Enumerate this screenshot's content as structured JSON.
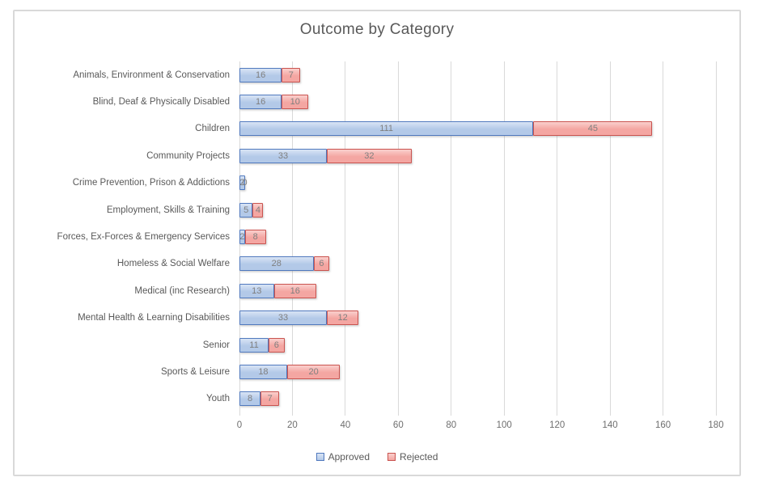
{
  "window": {
    "background": "#ffffff",
    "frame_border_color": "#d9d9d9"
  },
  "chart_data": {
    "type": "bar",
    "orientation": "horizontal",
    "stacked": true,
    "title": "Outcome by Category",
    "categories": [
      "Animals, Environment & Conservation",
      "Blind, Deaf & Physically Disabled",
      "Children",
      "Community Projects",
      "Crime Prevention, Prison & Addictions",
      "Employment, Skills & Training",
      "Forces, Ex-Forces & Emergency Services",
      "Homeless & Social Welfare",
      "Medical (inc Research)",
      "Mental Health & Learning Disabilities",
      "Senior",
      "Sports & Leisure",
      "Youth"
    ],
    "series": [
      {
        "name": "Approved",
        "values": [
          16,
          16,
          111,
          33,
          2,
          5,
          2,
          28,
          13,
          33,
          11,
          18,
          8
        ],
        "fill": "#B3C9E8",
        "fill_light": "#D9E4F5",
        "border": "#5079BE"
      },
      {
        "name": "Rejected",
        "values": [
          7,
          10,
          45,
          32,
          0,
          4,
          8,
          6,
          16,
          12,
          6,
          20,
          7
        ],
        "fill": "#F4A6A2",
        "fill_light": "#FAD0CD",
        "border": "#C9534F"
      }
    ],
    "xlim": [
      0,
      180
    ],
    "xticks": [
      0,
      20,
      40,
      60,
      80,
      100,
      120,
      140,
      160,
      180
    ],
    "grid": "vertical-gridlines",
    "gridline_color": "#D9D9D9",
    "legend_position": "bottom",
    "data_labels": true,
    "data_label_color": "#7F7F7F",
    "text_color": "#595959"
  }
}
